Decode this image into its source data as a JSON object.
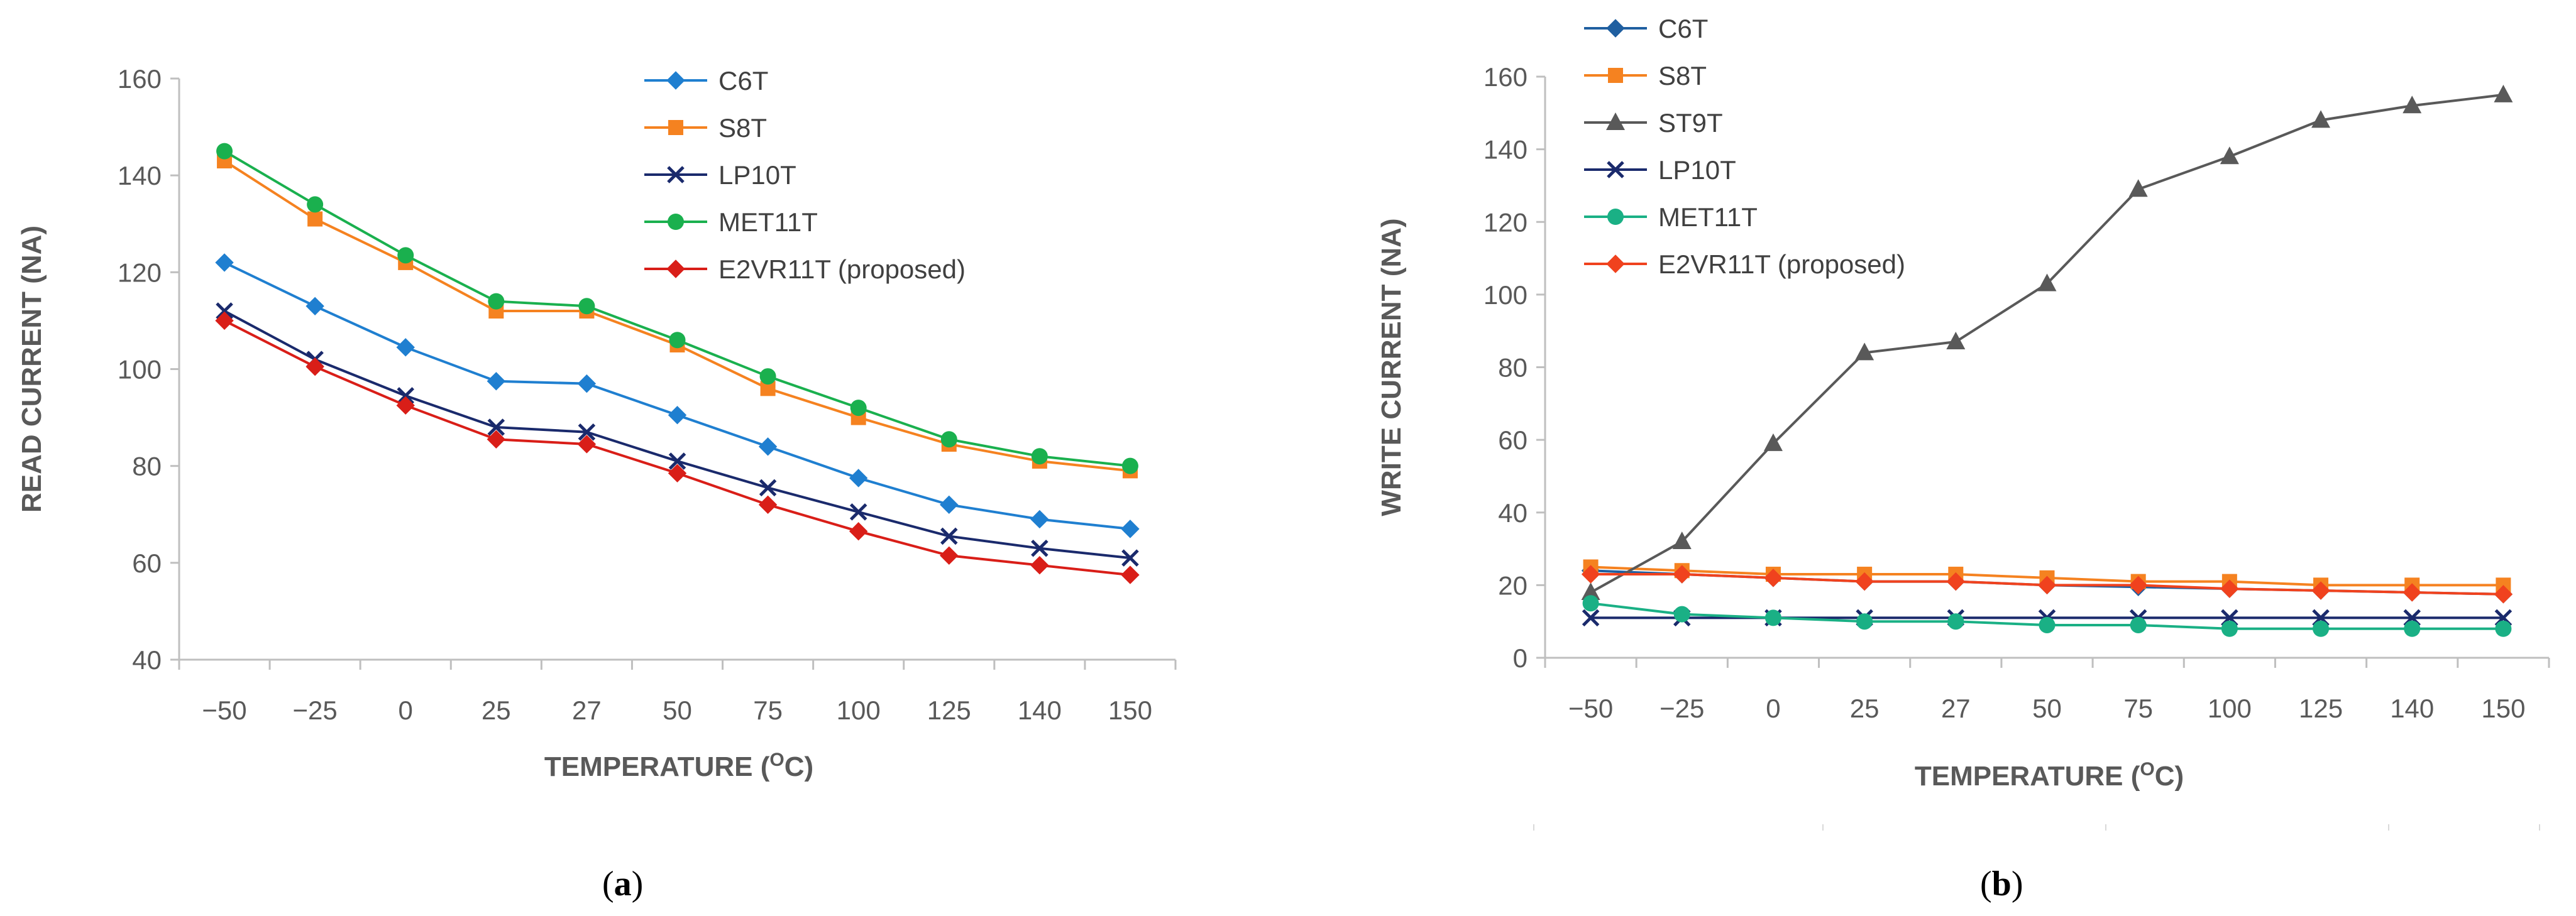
{
  "chart_data": [
    {
      "id": "a",
      "type": "line",
      "panel_label": "(a)",
      "panel_letter": "a",
      "xlabel": "TEMPERATURE (OC)",
      "xlabel_main": "TEMPERATURE (",
      "xlabel_sup": "O",
      "xlabel_end": "C)",
      "ylabel": "READ CURRENT (NA)",
      "categories": [
        "−50",
        "−25",
        "0",
        "25",
        "27",
        "50",
        "75",
        "100",
        "125",
        "140",
        "150"
      ],
      "ylim": [
        40,
        160
      ],
      "yticks": [
        40,
        60,
        80,
        100,
        120,
        140,
        160
      ],
      "legend_position": "top-center",
      "series": [
        {
          "name": "C6T",
          "color": "#1f7fd0",
          "marker": "diamond",
          "values": [
            122,
            113,
            104.5,
            97.5,
            97,
            90.5,
            84,
            77.5,
            72,
            69,
            67
          ]
        },
        {
          "name": "S8T",
          "color": "#f58220",
          "marker": "square",
          "values": [
            143,
            131,
            122,
            112,
            112,
            105,
            96,
            90,
            84.5,
            81,
            79
          ]
        },
        {
          "name": "LP10T",
          "color": "#1a2a6c",
          "marker": "x",
          "values": [
            112,
            102,
            94.5,
            88,
            87,
            81,
            75.5,
            70.5,
            65.5,
            63,
            61
          ]
        },
        {
          "name": "MET11T",
          "color": "#1ab04e",
          "marker": "circle",
          "values": [
            145,
            134,
            123.5,
            114,
            113,
            106,
            98.5,
            92,
            85.5,
            82,
            80
          ]
        },
        {
          "name": "E2VR11T (proposed)",
          "color": "#d91e18",
          "marker": "diamond",
          "values": [
            110,
            100.5,
            92.5,
            85.5,
            84.5,
            78.5,
            72,
            66.5,
            61.5,
            59.5,
            57.5
          ]
        }
      ]
    },
    {
      "id": "b",
      "type": "line",
      "panel_label": "(b)",
      "panel_letter": "b",
      "xlabel": "TEMPERATURE (OC)",
      "xlabel_main": "TEMPERATURE (",
      "xlabel_sup": "O",
      "xlabel_end": "C)",
      "ylabel": "WRITE CURRENT (NA)",
      "categories": [
        "−50",
        "−25",
        "0",
        "25",
        "27",
        "50",
        "75",
        "100",
        "125",
        "140",
        "150"
      ],
      "ylim": [
        0,
        160
      ],
      "yticks": [
        0,
        20,
        40,
        60,
        80,
        100,
        120,
        140,
        160
      ],
      "legend_position": "top-left",
      "series": [
        {
          "name": "C6T",
          "color": "#1f5fa0",
          "marker": "diamond",
          "values": [
            24,
            23,
            22,
            21,
            21,
            20,
            19.5,
            19,
            18.5,
            18,
            17.5
          ]
        },
        {
          "name": "S8T",
          "color": "#f58220",
          "marker": "square",
          "values": [
            25,
            24,
            23,
            23,
            23,
            22,
            21,
            21,
            20,
            20,
            20
          ]
        },
        {
          "name": "ST9T",
          "color": "#595959",
          "marker": "triangle",
          "values": [
            18,
            32,
            59,
            84,
            87,
            103,
            129,
            138,
            148,
            152,
            155
          ]
        },
        {
          "name": "LP10T",
          "color": "#1a2a6c",
          "marker": "x",
          "values": [
            11,
            11,
            11,
            11,
            11,
            11,
            11,
            11,
            11,
            11,
            11
          ]
        },
        {
          "name": "MET11T",
          "color": "#1ab085",
          "marker": "circle",
          "values": [
            15,
            12,
            11,
            10,
            10,
            9,
            9,
            8,
            8,
            8,
            8
          ]
        },
        {
          "name": "E2VR11T (proposed)",
          "color": "#f0421e",
          "marker": "diamond",
          "values": [
            23,
            23,
            22,
            21,
            21,
            20,
            20,
            19,
            18.5,
            18,
            17.5
          ]
        }
      ]
    }
  ]
}
